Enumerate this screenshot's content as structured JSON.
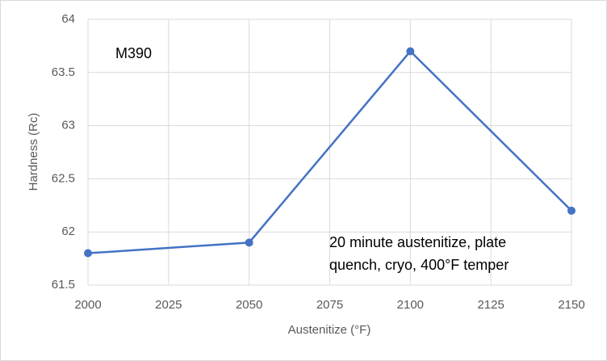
{
  "chart_data": {
    "type": "line",
    "x_label": "Austenitize (°F)",
    "y_label": "Hardness (Rc)",
    "x": [
      2000,
      2050,
      2100,
      2150
    ],
    "series": [
      {
        "color": "#4472c4",
        "values": [
          61.8,
          61.9,
          63.7,
          62.2
        ]
      }
    ],
    "xlim": [
      2000,
      2150
    ],
    "xticks": [
      2000,
      2025,
      2050,
      2075,
      2100,
      2125,
      2150
    ],
    "ylim": [
      61.5,
      64
    ],
    "yticks": [
      61.5,
      62,
      62.5,
      63,
      63.5,
      64
    ],
    "grid": true,
    "annotations": [
      [
        "M390"
      ],
      [
        "20 minute austenitize, plate",
        "quench, cryo, 400°F temper"
      ]
    ]
  }
}
